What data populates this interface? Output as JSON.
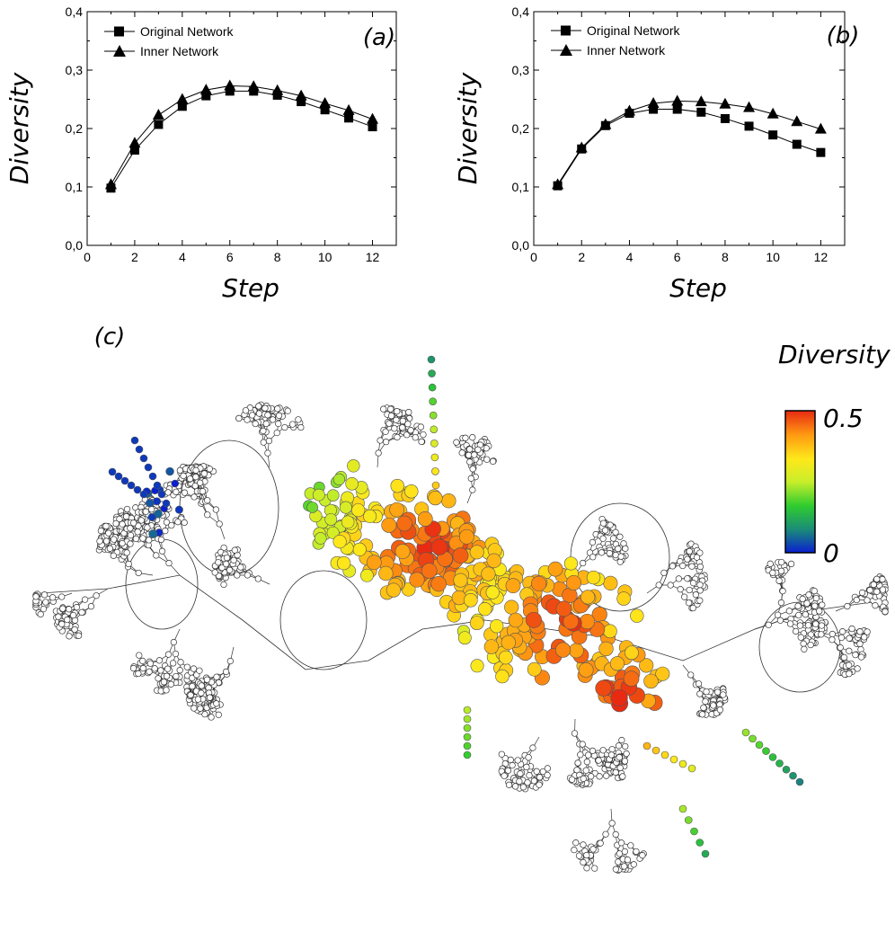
{
  "chart_data": [
    {
      "type": "line",
      "panel_label": "(a)",
      "xlabel": "Step",
      "ylabel": "Diversity",
      "xlim": [
        0,
        13
      ],
      "ylim": [
        0.0,
        0.4
      ],
      "xticks": [
        "0",
        "2",
        "4",
        "6",
        "8",
        "10",
        "12"
      ],
      "yticks": [
        "0,0",
        "0,1",
        "0,2",
        "0,3",
        "0,4"
      ],
      "legend_position": "top-left",
      "grid": false,
      "x": [
        1,
        2,
        3,
        4,
        5,
        6,
        7,
        8,
        9,
        10,
        11,
        12
      ],
      "series": [
        {
          "name": "Original Network",
          "marker": "square",
          "values": [
            0.098,
            0.163,
            0.207,
            0.238,
            0.256,
            0.264,
            0.264,
            0.257,
            0.246,
            0.232,
            0.218,
            0.203
          ]
        },
        {
          "name": "Inner Network",
          "marker": "triangle",
          "values": [
            0.104,
            0.175,
            0.223,
            0.25,
            0.266,
            0.273,
            0.272,
            0.265,
            0.256,
            0.243,
            0.231,
            0.216
          ]
        }
      ]
    },
    {
      "type": "line",
      "panel_label": "(b)",
      "xlabel": "Step",
      "ylabel": "Diversity",
      "xlim": [
        0,
        13
      ],
      "ylim": [
        0.0,
        0.4
      ],
      "xticks": [
        "0",
        "2",
        "4",
        "6",
        "8",
        "10",
        "12"
      ],
      "yticks": [
        "0,0",
        "0,1",
        "0,2",
        "0,3",
        "0,4"
      ],
      "legend_position": "top-left",
      "grid": false,
      "x": [
        1,
        2,
        3,
        4,
        5,
        6,
        7,
        8,
        9,
        10,
        11,
        12
      ],
      "series": [
        {
          "name": "Original Network",
          "marker": "square",
          "values": [
            0.102,
            0.165,
            0.205,
            0.226,
            0.233,
            0.233,
            0.228,
            0.217,
            0.204,
            0.189,
            0.173,
            0.159
          ]
        },
        {
          "name": "Inner Network",
          "marker": "triangle",
          "values": [
            0.104,
            0.167,
            0.207,
            0.23,
            0.243,
            0.247,
            0.246,
            0.242,
            0.236,
            0.225,
            0.212,
            0.199
          ]
        }
      ]
    },
    {
      "type": "scatter",
      "panel_label": "(c)",
      "colorbar_title": "Diversity",
      "colorbar_max_label": "0.5",
      "colorbar_min_label": "0",
      "colorbar_range": [
        0,
        0.5
      ],
      "colorbar_colors": [
        "#0a1fd0",
        "#1a8a7a",
        "#2fcc2f",
        "#c8ee2a",
        "#ffe81a",
        "#ff9a12",
        "#e82a12"
      ]
    }
  ]
}
